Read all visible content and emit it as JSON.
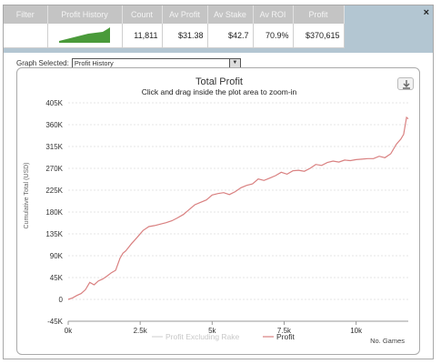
{
  "summary": {
    "headers": [
      "Filter",
      "Profit History",
      "Count",
      "Av Profit",
      "Av Stake",
      "Av ROI",
      "Profit"
    ],
    "values": [
      "",
      "",
      "11,811",
      "$31.38",
      "$42.7",
      "70.9%",
      "$370,615"
    ],
    "close_label": "×"
  },
  "graph_select": {
    "label": "Graph Selected:",
    "value": "Profit History"
  },
  "chart_data": {
    "type": "line",
    "title": "Total Profit",
    "subtitle": "Click and drag inside the plot area to zoom-in",
    "xlabel": "No. Games",
    "ylabel": "Cumulative Total (USD)",
    "xlim": [
      0,
      11811
    ],
    "ylim": [
      -45000,
      405000
    ],
    "x_ticks": [
      0,
      2500,
      5000,
      7500,
      10000
    ],
    "x_tick_labels": [
      "0k",
      "2.5k",
      "5k",
      "7.5k",
      "10k"
    ],
    "y_ticks": [
      -45000,
      0,
      45000,
      90000,
      135000,
      180000,
      225000,
      270000,
      315000,
      360000,
      405000
    ],
    "y_tick_labels": [
      "-45K",
      "0",
      "45K",
      "90K",
      "135K",
      "180K",
      "225K",
      "270K",
      "315K",
      "360K",
      "405K"
    ],
    "grid": true,
    "legend_position": "bottom",
    "series": [
      {
        "name": "Profit Excluding Rake",
        "color": "#d8d8d8",
        "visible": false,
        "x": [],
        "y": []
      },
      {
        "name": "Profit",
        "color": "#d98080",
        "visible": true,
        "x": [
          0,
          150,
          300,
          450,
          600,
          750,
          900,
          1050,
          1200,
          1350,
          1500,
          1650,
          1800,
          1900,
          2000,
          2200,
          2400,
          2600,
          2800,
          3000,
          3200,
          3400,
          3600,
          3800,
          4000,
          4200,
          4400,
          4600,
          4800,
          5000,
          5200,
          5400,
          5600,
          5800,
          6000,
          6200,
          6400,
          6600,
          6800,
          7000,
          7200,
          7400,
          7600,
          7800,
          8000,
          8200,
          8400,
          8600,
          8800,
          9000,
          9200,
          9400,
          9600,
          9800,
          10000,
          10200,
          10400,
          10600,
          10800,
          11000,
          11200,
          11400,
          11550,
          11650,
          11750,
          11811
        ],
        "y": [
          0,
          3000,
          8000,
          12000,
          20000,
          35000,
          30000,
          38000,
          42000,
          48000,
          55000,
          60000,
          85000,
          95000,
          100000,
          115000,
          128000,
          142000,
          150000,
          152000,
          155000,
          158000,
          162000,
          168000,
          175000,
          185000,
          195000,
          200000,
          205000,
          215000,
          218000,
          220000,
          216000,
          222000,
          230000,
          235000,
          238000,
          248000,
          245000,
          250000,
          255000,
          262000,
          258000,
          265000,
          266000,
          264000,
          270000,
          278000,
          276000,
          282000,
          285000,
          283000,
          287000,
          286000,
          288000,
          289000,
          290000,
          290000,
          295000,
          292000,
          300000,
          320000,
          330000,
          340000,
          375000,
          372000
        ]
      }
    ]
  }
}
